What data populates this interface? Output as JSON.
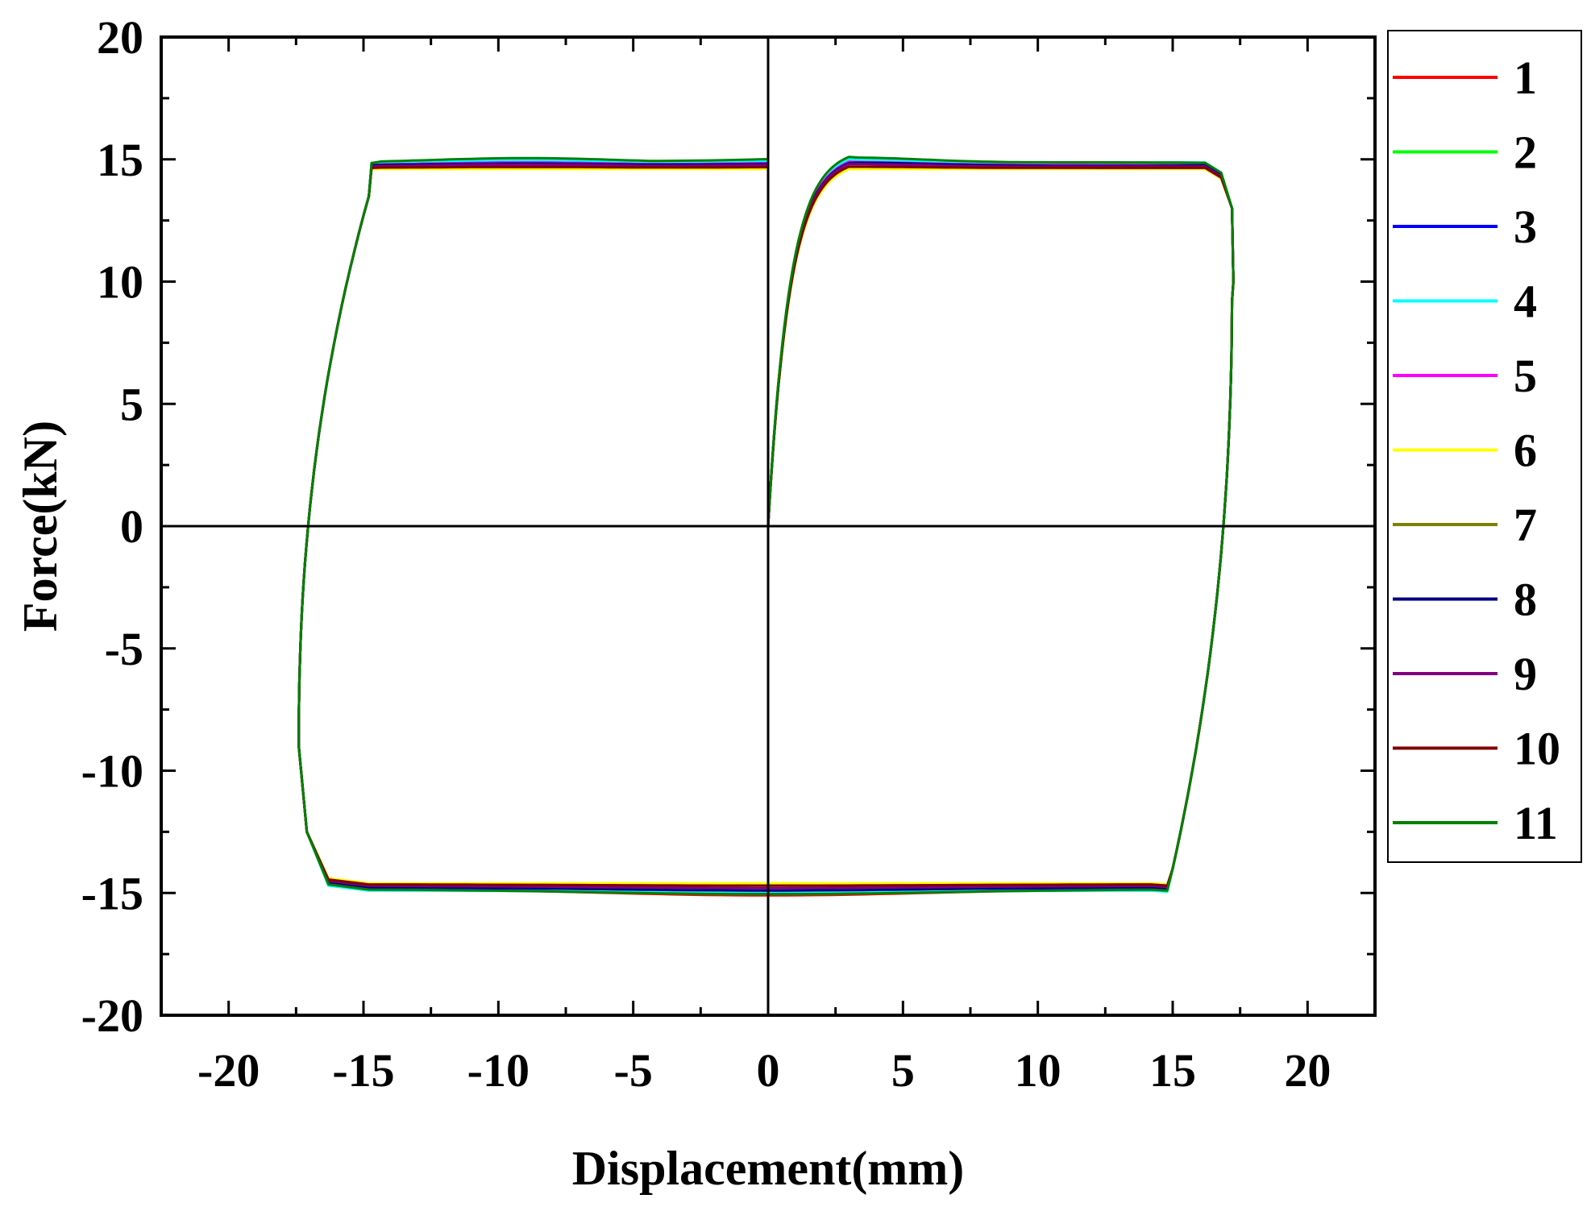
{
  "chart_data": {
    "type": "line",
    "xlabel": "Displacement(mm)",
    "ylabel": "Force(kN)",
    "xlim": [
      -22.5,
      22.5
    ],
    "ylim": [
      -20,
      20
    ],
    "xticks": [
      -20,
      -15,
      -10,
      -5,
      0,
      5,
      10,
      15,
      20
    ],
    "xtick_labels": [
      "-20",
      "-15",
      "-10",
      "-5",
      "0",
      "5",
      "10",
      "15",
      "20"
    ],
    "yticks": [
      -20,
      -15,
      -10,
      -5,
      0,
      5,
      10,
      15,
      20
    ],
    "ytick_labels": [
      "-20",
      "-15",
      "-10",
      "-5",
      "0",
      "5",
      "10",
      "15",
      "20"
    ],
    "zero_lines": true,
    "grid": false,
    "legend_position": "right, outside plot",
    "series": [
      {
        "name": "1",
        "color": "#ff0000",
        "upper_peak": 15.0,
        "lower_peak": -15.1,
        "upper_plateau": 14.8,
        "lower_plateau": -14.8
      },
      {
        "name": "2",
        "color": "#00ff00",
        "upper_peak": 14.95,
        "lower_peak": -15.0,
        "upper_plateau": 14.8,
        "lower_plateau": -14.85
      },
      {
        "name": "3",
        "color": "#0000ff",
        "upper_peak": 14.9,
        "lower_peak": -15.0,
        "upper_plateau": 14.75,
        "lower_plateau": -14.8
      },
      {
        "name": "4",
        "color": "#00ffff",
        "upper_peak": 15.0,
        "lower_peak": -14.95,
        "upper_plateau": 14.85,
        "lower_plateau": -14.9
      },
      {
        "name": "5",
        "color": "#ff00ff",
        "upper_peak": 14.9,
        "lower_peak": -14.9,
        "upper_plateau": 14.75,
        "lower_plateau": -14.75
      },
      {
        "name": "6",
        "color": "#ffff00",
        "upper_peak": 14.6,
        "lower_peak": -14.6,
        "upper_plateau": 14.6,
        "lower_plateau": -14.6
      },
      {
        "name": "7",
        "color": "#808000",
        "upper_peak": 14.7,
        "lower_peak": -14.7,
        "upper_plateau": 14.65,
        "lower_plateau": -14.65
      },
      {
        "name": "8",
        "color": "#000080",
        "upper_peak": 14.85,
        "lower_peak": -14.9,
        "upper_plateau": 14.75,
        "lower_plateau": -14.75
      },
      {
        "name": "9",
        "color": "#800080",
        "upper_peak": 14.8,
        "lower_peak": -14.8,
        "upper_plateau": 14.7,
        "lower_plateau": -14.7
      },
      {
        "name": "10",
        "color": "#800000",
        "upper_peak": 14.7,
        "lower_peak": -14.7,
        "upper_plateau": 14.65,
        "lower_plateau": -14.65
      },
      {
        "name": "11",
        "color": "#008000",
        "upper_peak": 15.1,
        "lower_peak": -15.05,
        "upper_plateau": 14.85,
        "lower_plateau": -14.85
      }
    ],
    "loop_shape": {
      "x_max": 17.2,
      "x_min": -17.4,
      "x_intercept_pos": 17.0,
      "x_intercept_neg": -17.0,
      "unload_knee_pos": 15.0,
      "unload_knee_neg": -14.8
    }
  }
}
